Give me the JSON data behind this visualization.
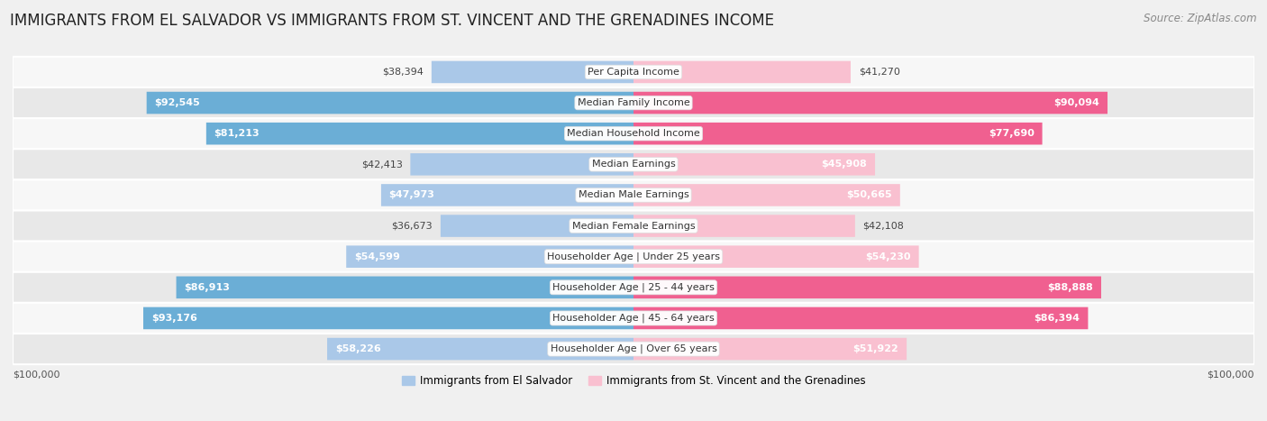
{
  "title": "IMMIGRANTS FROM EL SALVADOR VS IMMIGRANTS FROM ST. VINCENT AND THE GRENADINES INCOME",
  "source": "Source: ZipAtlas.com",
  "categories": [
    "Per Capita Income",
    "Median Family Income",
    "Median Household Income",
    "Median Earnings",
    "Median Male Earnings",
    "Median Female Earnings",
    "Householder Age | Under 25 years",
    "Householder Age | 25 - 44 years",
    "Householder Age | 45 - 64 years",
    "Householder Age | Over 65 years"
  ],
  "el_salvador": [
    38394,
    92545,
    81213,
    42413,
    47973,
    36673,
    54599,
    86913,
    93176,
    58226
  ],
  "st_vincent": [
    41270,
    90094,
    77690,
    45908,
    50665,
    42108,
    54230,
    88888,
    86394,
    51922
  ],
  "el_salvador_labels": [
    "$38,394",
    "$92,545",
    "$81,213",
    "$42,413",
    "$47,973",
    "$36,673",
    "$54,599",
    "$86,913",
    "$93,176",
    "$58,226"
  ],
  "st_vincent_labels": [
    "$41,270",
    "$90,094",
    "$77,690",
    "$45,908",
    "$50,665",
    "$42,108",
    "$54,230",
    "$88,888",
    "$86,394",
    "$51,922"
  ],
  "color_el_salvador_light": "#aac8e8",
  "color_el_salvador_dark": "#6baed6",
  "color_st_vincent_light": "#f9c0d0",
  "color_st_vincent_dark": "#f06090",
  "threshold_dark": 60000,
  "max_value": 100000,
  "bg_color": "#f0f0f0",
  "row_bg_light": "#f7f7f7",
  "row_bg_dark": "#e8e8e8",
  "legend_label_1": "Immigrants from El Salvador",
  "legend_label_2": "Immigrants from St. Vincent and the Grenadines",
  "title_fontsize": 12,
  "source_fontsize": 8.5,
  "label_fontsize": 8,
  "category_fontsize": 8
}
